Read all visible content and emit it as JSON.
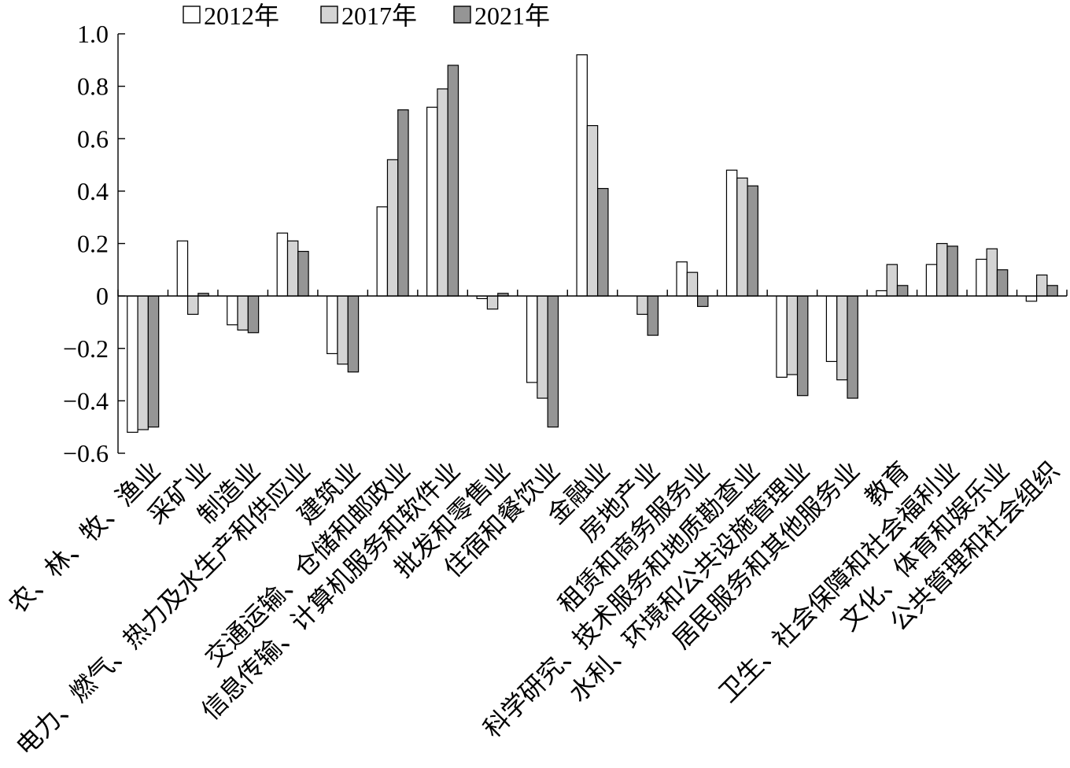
{
  "chart_data": {
    "type": "bar",
    "legend": "top",
    "grid": false,
    "ylim": [
      -0.6,
      1.0
    ],
    "yticks": [
      1.0,
      0.8,
      0.6,
      0.4,
      0.2,
      0,
      -0.2,
      -0.4,
      -0.6
    ],
    "ytick_labels": [
      "1.0",
      "0.8",
      "0.6",
      "0.4",
      "0.2",
      "0",
      "−0.2",
      "−0.4",
      "−0.6"
    ],
    "categories": [
      "农、林、牧、渔业",
      "采矿业",
      "制造业",
      "电力、燃气、热力及水生产和供应业",
      "建筑业",
      "交通运输、仓储和邮政业",
      "信息传输、计算机服务和软件业",
      "批发和零售业",
      "住宿和餐饮业",
      "金融业",
      "房地产业",
      "租赁和商务服务业",
      "科学研究、技术服务和地质勘查业",
      "水利、环境和公共设施管理业",
      "居民服务和其他服务业",
      "教育",
      "卫生、社会保障和社会福利业",
      "文化、体育和娱乐业",
      "公共管理和社会组织"
    ],
    "series": [
      {
        "name": "2012年",
        "color": "#ffffff",
        "values": [
          -0.52,
          0.21,
          -0.11,
          0.24,
          -0.22,
          0.34,
          0.72,
          -0.01,
          -0.33,
          0.92,
          0.0,
          0.13,
          0.48,
          -0.31,
          -0.25,
          0.02,
          0.12,
          0.14,
          -0.02
        ]
      },
      {
        "name": "2017年",
        "color": "#d4d4d4",
        "values": [
          -0.51,
          -0.07,
          -0.13,
          0.21,
          -0.26,
          0.52,
          0.79,
          -0.05,
          -0.39,
          0.65,
          -0.07,
          0.09,
          0.45,
          -0.3,
          -0.32,
          0.12,
          0.2,
          0.18,
          0.08
        ]
      },
      {
        "name": "2021年",
        "color": "#959595",
        "values": [
          -0.5,
          0.01,
          -0.14,
          0.17,
          -0.29,
          0.71,
          0.88,
          0.01,
          -0.5,
          0.41,
          -0.15,
          -0.04,
          0.42,
          -0.38,
          -0.39,
          0.04,
          0.19,
          0.1,
          0.04
        ]
      }
    ]
  }
}
